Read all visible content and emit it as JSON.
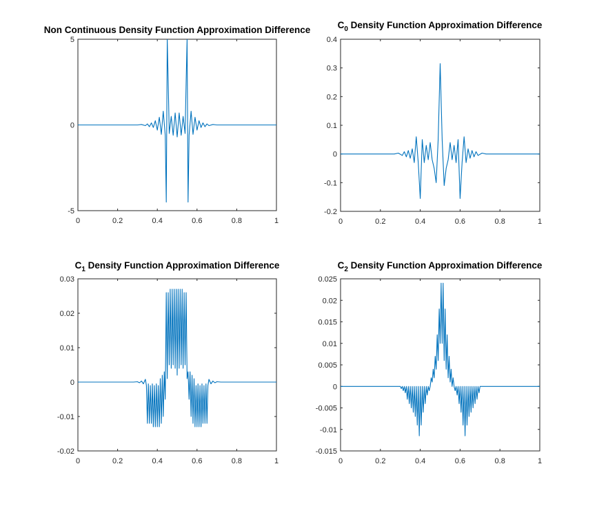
{
  "chart_data": [
    {
      "type": "line",
      "title": "Non Continuous Density Function Approximation Difference",
      "title_subscript": "",
      "title_rest": "",
      "xlim": [
        0,
        1
      ],
      "ylim": [
        -5,
        5
      ],
      "xticks": [
        0,
        0.2,
        0.4,
        0.6,
        0.8,
        1
      ],
      "yticks": [
        -5,
        0,
        5
      ],
      "xtick_labels": [
        "0",
        "0.2",
        "0.4",
        "0.6",
        "0.8",
        "1"
      ],
      "ytick_labels": [
        "-5",
        "0",
        "5"
      ],
      "color": "#0072BD",
      "x": [
        0,
        0.3,
        0.32,
        0.34,
        0.35,
        0.36,
        0.37,
        0.38,
        0.39,
        0.4,
        0.41,
        0.42,
        0.43,
        0.44,
        0.445,
        0.45,
        0.455,
        0.46,
        0.47,
        0.48,
        0.49,
        0.5,
        0.51,
        0.52,
        0.53,
        0.54,
        0.545,
        0.55,
        0.555,
        0.56,
        0.57,
        0.58,
        0.59,
        0.6,
        0.61,
        0.62,
        0.63,
        0.64,
        0.65,
        0.66,
        0.68,
        0.7,
        1
      ],
      "y": [
        0,
        0,
        0.03,
        -0.04,
        0.06,
        -0.1,
        0.12,
        -0.15,
        0.25,
        -0.3,
        0.45,
        -0.55,
        0.8,
        -0.6,
        -4.5,
        5,
        2.5,
        -0.5,
        0.5,
        -0.6,
        0.7,
        -0.7,
        0.7,
        -0.6,
        0.5,
        -0.5,
        2.5,
        5,
        -4.5,
        -0.6,
        0.8,
        -0.55,
        0.45,
        -0.3,
        0.25,
        -0.15,
        0.12,
        -0.1,
        0.06,
        -0.04,
        0.03,
        0,
        0
      ]
    },
    {
      "type": "line",
      "title": "C",
      "title_subscript": "0",
      "title_rest": " Density Function Approximation Difference",
      "xlim": [
        0,
        1
      ],
      "ylim": [
        -0.2,
        0.4
      ],
      "xticks": [
        0,
        0.2,
        0.4,
        0.6,
        0.8,
        1
      ],
      "yticks": [
        -0.2,
        -0.1,
        0,
        0.1,
        0.2,
        0.3,
        0.4
      ],
      "xtick_labels": [
        "0",
        "0.2",
        "0.4",
        "0.6",
        "0.8",
        "1"
      ],
      "ytick_labels": [
        "-0.2",
        "-0.1",
        "0",
        "0.1",
        "0.2",
        "0.3",
        "0.4"
      ],
      "color": "#0072BD",
      "x": [
        0,
        0.27,
        0.29,
        0.31,
        0.32,
        0.33,
        0.34,
        0.35,
        0.36,
        0.37,
        0.38,
        0.39,
        0.4,
        0.41,
        0.42,
        0.43,
        0.44,
        0.45,
        0.46,
        0.47,
        0.48,
        0.49,
        0.5,
        0.51,
        0.52,
        0.53,
        0.54,
        0.55,
        0.56,
        0.57,
        0.58,
        0.59,
        0.6,
        0.61,
        0.62,
        0.63,
        0.64,
        0.65,
        0.66,
        0.67,
        0.68,
        0.69,
        0.71,
        0.73,
        1
      ],
      "y": [
        0,
        0,
        0.003,
        -0.005,
        0.008,
        -0.01,
        0.012,
        -0.015,
        0.018,
        -0.03,
        0.06,
        -0.03,
        -0.155,
        0.05,
        -0.03,
        0.03,
        -0.02,
        0.04,
        -0.02,
        -0.05,
        -0.1,
        0.05,
        0.315,
        0.05,
        -0.11,
        -0.05,
        -0.02,
        0.04,
        -0.02,
        0.03,
        -0.03,
        0.05,
        -0.155,
        -0.03,
        0.06,
        -0.03,
        0.018,
        -0.015,
        0.012,
        -0.01,
        0.008,
        -0.005,
        0.003,
        0,
        0
      ]
    },
    {
      "type": "line",
      "title": "C",
      "title_subscript": "1",
      "title_rest": " Density Function Approximation Difference",
      "xlim": [
        0,
        1
      ],
      "ylim": [
        -0.02,
        0.03
      ],
      "xticks": [
        0,
        0.2,
        0.4,
        0.6,
        0.8,
        1
      ],
      "yticks": [
        -0.02,
        -0.01,
        0,
        0.01,
        0.02,
        0.03
      ],
      "xtick_labels": [
        "0",
        "0.2",
        "0.4",
        "0.6",
        "0.8",
        "1"
      ],
      "ytick_labels": [
        "-0.02",
        "-0.01",
        "0",
        "0.01",
        "0.02",
        "0.03"
      ],
      "color": "#0072BD",
      "x": [
        0,
        0.28,
        0.3,
        0.31,
        0.32,
        0.33,
        0.34,
        0.345,
        0.35,
        0.355,
        0.36,
        0.365,
        0.37,
        0.375,
        0.38,
        0.385,
        0.39,
        0.395,
        0.4,
        0.405,
        0.41,
        0.415,
        0.42,
        0.425,
        0.43,
        0.435,
        0.44,
        0.445,
        0.45,
        0.455,
        0.46,
        0.465,
        0.47,
        0.475,
        0.48,
        0.485,
        0.49,
        0.495,
        0.5,
        0.505,
        0.51,
        0.515,
        0.52,
        0.525,
        0.53,
        0.535,
        0.54,
        0.545,
        0.55,
        0.555,
        0.56,
        0.565,
        0.57,
        0.575,
        0.58,
        0.585,
        0.59,
        0.595,
        0.6,
        0.605,
        0.61,
        0.615,
        0.62,
        0.625,
        0.63,
        0.635,
        0.64,
        0.645,
        0.65,
        0.655,
        0.66,
        0.67,
        0.68,
        0.69,
        0.7,
        0.72,
        1
      ],
      "y": [
        0,
        0,
        0.0001,
        -0.0002,
        0.0003,
        -0.0005,
        0.0008,
        -0.001,
        -0.012,
        -0.0005,
        -0.012,
        -0.001,
        -0.012,
        -0.0005,
        -0.013,
        -0.001,
        -0.013,
        -0.0005,
        -0.013,
        -0.001,
        -0.013,
        0.001,
        -0.012,
        0.002,
        -0.01,
        0.003,
        -0.005,
        0.026,
        0.001,
        0.026,
        0.005,
        0.027,
        0.004,
        0.027,
        0.005,
        0.027,
        0.004,
        0.027,
        0.002,
        0.027,
        0.004,
        0.027,
        0.005,
        0.027,
        0.004,
        0.026,
        0.005,
        0.026,
        0.001,
        0.003,
        -0.005,
        0.003,
        -0.01,
        0.002,
        -0.012,
        0.001,
        -0.013,
        -0.001,
        -0.013,
        -0.0005,
        -0.013,
        -0.001,
        -0.013,
        -0.0005,
        -0.012,
        -0.001,
        -0.012,
        -0.0005,
        -0.012,
        -0.001,
        0.0008,
        -0.0005,
        0.0003,
        -0.0002,
        0.0001,
        0,
        0
      ]
    },
    {
      "type": "line",
      "title": "C",
      "title_subscript": "2",
      "title_rest": " Density Function Approximation Difference",
      "xlim": [
        0,
        1
      ],
      "ylim": [
        -0.015,
        0.025
      ],
      "xticks": [
        0,
        0.2,
        0.4,
        0.6,
        0.8,
        1
      ],
      "yticks": [
        -0.015,
        -0.01,
        -0.005,
        0,
        0.005,
        0.01,
        0.015,
        0.02,
        0.025
      ],
      "xtick_labels": [
        "0",
        "0.2",
        "0.4",
        "0.6",
        "0.8",
        "1"
      ],
      "ytick_labels": [
        "-0.015",
        "-0.01",
        "-0.005",
        "0",
        "0.005",
        "0.01",
        "0.015",
        "0.02",
        "0.025"
      ],
      "color": "#0072BD",
      "x": [
        0,
        0.3,
        0.305,
        0.31,
        0.315,
        0.32,
        0.325,
        0.33,
        0.335,
        0.34,
        0.345,
        0.35,
        0.355,
        0.36,
        0.365,
        0.37,
        0.375,
        0.38,
        0.385,
        0.39,
        0.395,
        0.4,
        0.405,
        0.41,
        0.415,
        0.42,
        0.425,
        0.43,
        0.435,
        0.44,
        0.445,
        0.45,
        0.455,
        0.46,
        0.465,
        0.47,
        0.475,
        0.48,
        0.485,
        0.49,
        0.495,
        0.5,
        0.505,
        0.51,
        0.515,
        0.52,
        0.525,
        0.53,
        0.535,
        0.54,
        0.545,
        0.55,
        0.555,
        0.56,
        0.565,
        0.57,
        0.575,
        0.58,
        0.585,
        0.59,
        0.595,
        0.6,
        0.605,
        0.61,
        0.615,
        0.62,
        0.625,
        0.63,
        0.635,
        0.64,
        0.645,
        0.65,
        0.655,
        0.66,
        0.665,
        0.67,
        0.675,
        0.68,
        0.685,
        0.69,
        0.695,
        0.7,
        1
      ],
      "y": [
        0,
        0,
        -0.0005,
        0,
        -0.001,
        0,
        -0.0015,
        0,
        -0.003,
        0,
        -0.004,
        0,
        -0.005,
        0,
        -0.006,
        0,
        -0.007,
        0,
        -0.009,
        0,
        -0.0115,
        0,
        -0.009,
        0,
        -0.006,
        0,
        -0.004,
        0,
        -0.002,
        0,
        -0.001,
        0,
        0.002,
        0.001,
        0.004,
        0.002,
        0.007,
        0.004,
        0.012,
        0.006,
        0.018,
        0.01,
        0.024,
        0.01,
        0.024,
        0.006,
        0.018,
        0.004,
        0.012,
        0.002,
        0.007,
        0.001,
        0.004,
        0,
        0.002,
        0,
        -0.001,
        0,
        -0.002,
        0,
        -0.004,
        0,
        -0.006,
        0,
        -0.009,
        0,
        -0.0115,
        0,
        -0.009,
        0,
        -0.007,
        0,
        -0.006,
        0,
        -0.005,
        0,
        -0.004,
        0,
        -0.003,
        0,
        -0.0015,
        0,
        0
      ]
    }
  ]
}
